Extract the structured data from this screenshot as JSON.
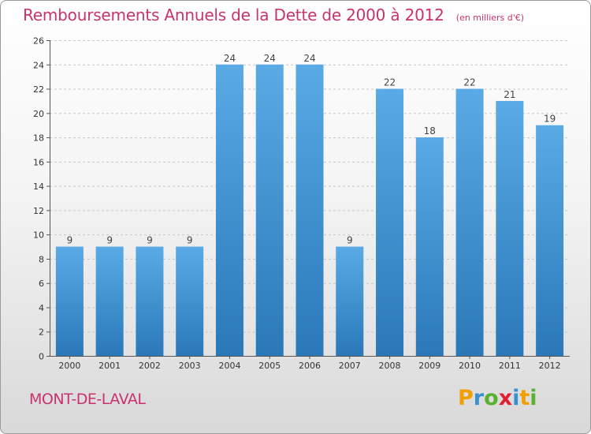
{
  "header": {
    "title": "Remboursements Annuels de la Dette de 2000 à 2012",
    "unit": "(en milliers d'€)"
  },
  "footer": {
    "commune": "MONT-DE-LAVAL",
    "logo": "Proxiti"
  },
  "colors": {
    "bar_light": "#5aaae6",
    "bar_dark": "#2a78b8",
    "title": "#c8336e"
  },
  "chart_data": {
    "type": "bar",
    "title": "Remboursements Annuels de la Dette de 2000 à 2012",
    "xlabel": "",
    "ylabel": "",
    "categories": [
      "2000",
      "2001",
      "2002",
      "2003",
      "2004",
      "2005",
      "2006",
      "2007",
      "2008",
      "2009",
      "2010",
      "2011",
      "2012"
    ],
    "values": [
      9,
      9,
      9,
      9,
      24,
      24,
      24,
      9,
      22,
      18,
      22,
      21,
      19
    ],
    "data_labels": [
      "9",
      "9",
      "9",
      "9",
      "24",
      "24",
      "24",
      "9",
      "22",
      "18",
      "22",
      "21",
      "19"
    ],
    "ylim": [
      0,
      26
    ],
    "yticks": [
      0,
      2,
      4,
      6,
      8,
      10,
      12,
      14,
      16,
      18,
      20,
      22,
      24,
      26
    ],
    "grid": true
  }
}
